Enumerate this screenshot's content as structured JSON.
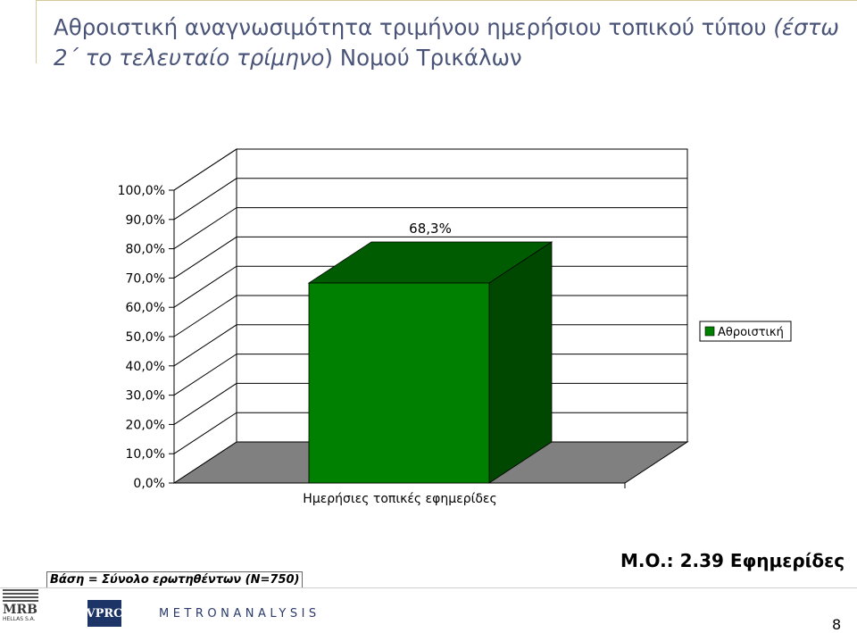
{
  "title": {
    "part1": "Αθροιστική αναγνωσιμότητα τριμήνου ημερήσιου τοπικού τύπου ",
    "italic": "(έστω 2΄ το τελευταίο τρίμηνο",
    "part2": ") Νομού Τρικάλων"
  },
  "chart_data": {
    "type": "bar",
    "categories": [
      "Ημερήσιες τοπικές εφημερίδες"
    ],
    "series": [
      {
        "name": "Αθροιστική",
        "values": [
          68.3
        ]
      }
    ],
    "data_labels": [
      "68,3%"
    ],
    "ylim": [
      0,
      100
    ],
    "y_ticks": [
      "0,0%",
      "10,0%",
      "20,0%",
      "30,0%",
      "40,0%",
      "50,0%",
      "60,0%",
      "70,0%",
      "80,0%",
      "90,0%",
      "100,0%"
    ],
    "legend_position": "right",
    "three_d": true,
    "colors": {
      "bar_front": "#008000",
      "bar_side": "#004800",
      "bar_top": "#005c00",
      "floor": "#808080"
    }
  },
  "footer": {
    "base_note": "Βάση = Σύνολο ερωτηθέντων (N=750)",
    "average": "M.O.: 2.39 Εφημερίδες",
    "page_number": "8"
  },
  "logos": {
    "mrb": "MRB",
    "mrb_sub": "HELLAS S.A.",
    "vprc": "VPRC",
    "metron": "METRONANALYSIS"
  }
}
